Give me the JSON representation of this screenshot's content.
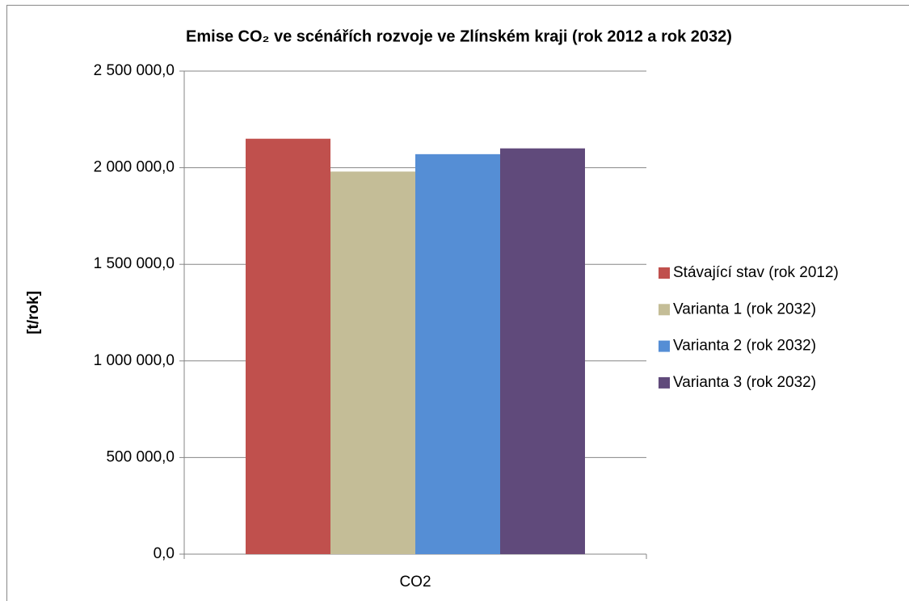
{
  "chart_data": {
    "type": "bar",
    "title": "Emise CO₂ ve scénářích rozvoje ve Zlínském kraji (rok 2012 a rok 2032)",
    "y_label": "[t/rok]",
    "categories": [
      "CO2"
    ],
    "series": [
      {
        "name": "Stávající stav (rok 2012)",
        "color": "#c0504d",
        "values": [
          2150000
        ]
      },
      {
        "name": "Varianta 1 (rok 2032)",
        "color": "#c4bd97",
        "values": [
          1980000
        ]
      },
      {
        "name": "Varianta 2 (rok 2032)",
        "color": "#558ed5",
        "values": [
          2070000
        ]
      },
      {
        "name": "Varianta 3 (rok 2032)",
        "color": "#604a7b",
        "values": [
          2100000
        ]
      }
    ],
    "ylim": [
      0,
      2500000
    ],
    "yticks": [
      {
        "value": 0,
        "label": "0,0"
      },
      {
        "value": 500000,
        "label": "500 000,0"
      },
      {
        "value": 1000000,
        "label": "1 000 000,0"
      },
      {
        "value": 1500000,
        "label": "1 500 000,0"
      },
      {
        "value": 2000000,
        "label": "2 000 000,0"
      },
      {
        "value": 2500000,
        "label": "2 500 000,0"
      }
    ],
    "grid": true,
    "legend": "right"
  }
}
